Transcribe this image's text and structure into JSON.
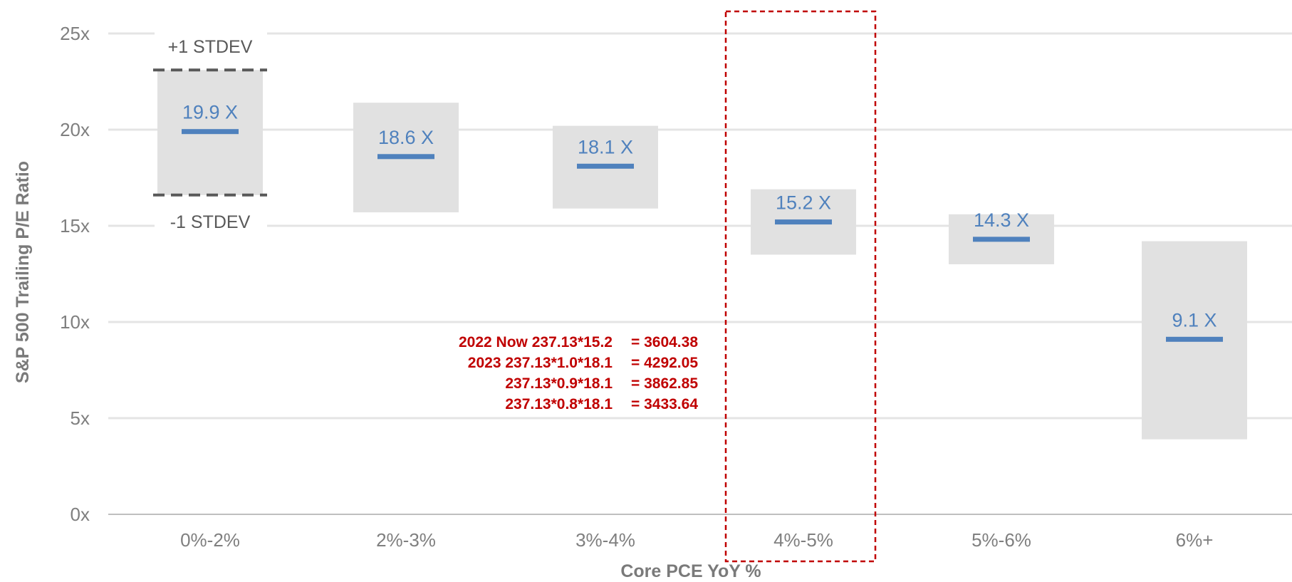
{
  "chart_data": {
    "type": "bar",
    "xlabel": "Core PCE YoY %",
    "ylabel": "S&P 500 Trailing P/E Ratio",
    "ylim": [
      0,
      25
    ],
    "yticks": [
      {
        "value": 0,
        "label": "0x"
      },
      {
        "value": 5,
        "label": "5x"
      },
      {
        "value": 10,
        "label": "10x"
      },
      {
        "value": 15,
        "label": "15x"
      },
      {
        "value": 20,
        "label": "20x"
      },
      {
        "value": 25,
        "label": "25x"
      }
    ],
    "grid": true,
    "categories": [
      "0%-2%",
      "2%-3%",
      "3%-4%",
      "4%-5%",
      "5%-6%",
      "6%+"
    ],
    "series": [
      {
        "values": [
          19.9,
          18.6,
          18.1,
          15.2,
          14.3,
          9.1
        ],
        "labels": [
          "19.9 X",
          "18.6 X",
          "18.1 X",
          "15.2 X",
          "14.3 X",
          "9.1 X"
        ],
        "range_high": [
          23.1,
          21.4,
          20.2,
          16.9,
          15.6,
          14.2
        ],
        "range_low": [
          16.6,
          15.7,
          15.9,
          13.5,
          13.0,
          3.9
        ]
      }
    ],
    "stdev_labels": {
      "upper": "+1 STDEV",
      "lower": "-1 STDEV"
    },
    "highlight_category": "4%-5%",
    "annotations": [
      {
        "left": "2022 Now 237.13*15.2",
        "right": "= 3604.38"
      },
      {
        "left": "2023 237.13*1.0*18.1",
        "right": "= 4292.05"
      },
      {
        "left": "237.13*0.9*18.1",
        "right": "= 3862.85"
      },
      {
        "left": "237.13*0.8*18.1",
        "right": "= 3433.64"
      }
    ],
    "colors": {
      "range_box": "#e1e1e1",
      "mean_line": "#4f81bd",
      "grid": "#e4e4e4",
      "axis": "#bfbfbf",
      "highlight": "#c00000",
      "stdev_line": "#595959",
      "annotation": "#c00000"
    }
  }
}
